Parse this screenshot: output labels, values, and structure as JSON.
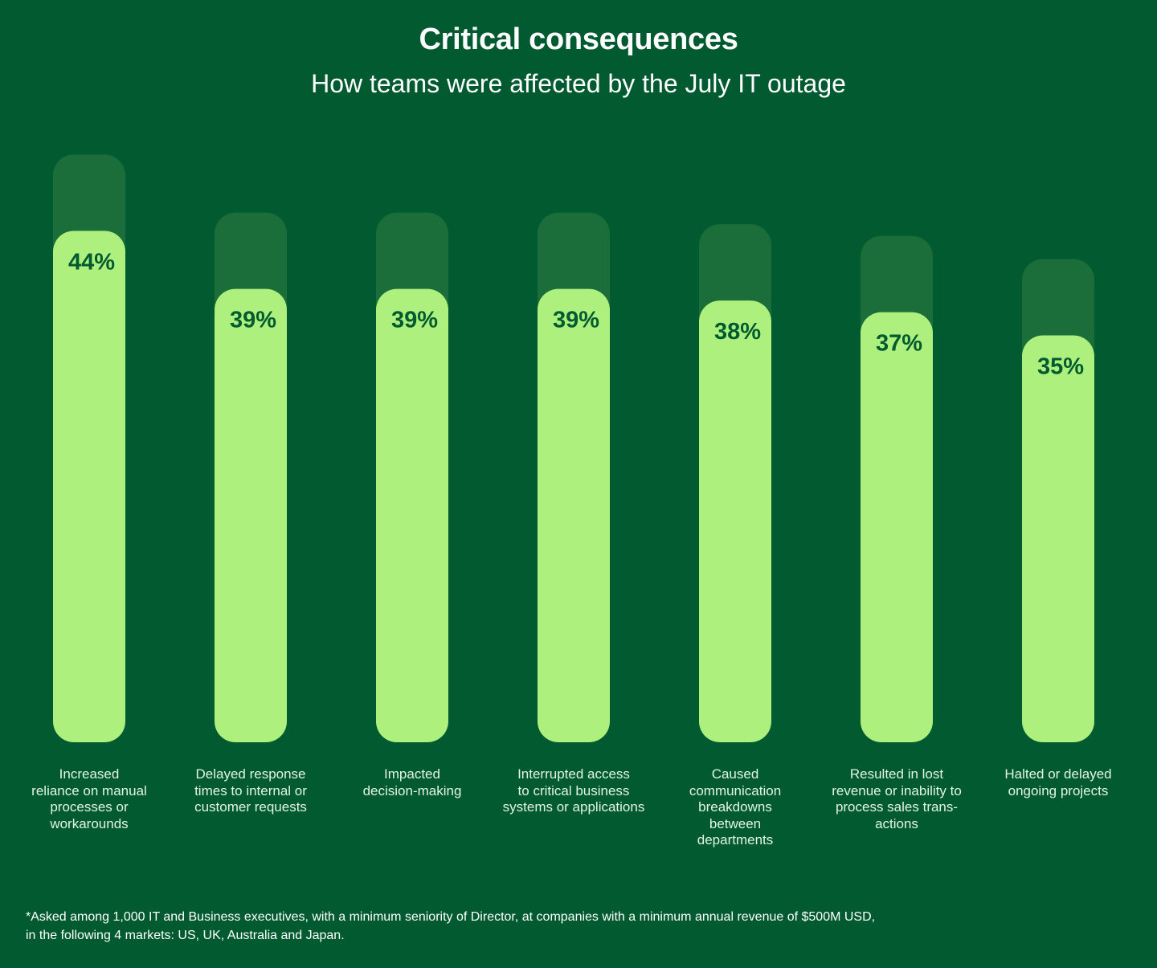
{
  "colors": {
    "background": "#015a30",
    "shadow_bar": "#1b6e3a",
    "value_bar": "#aef07d",
    "value_text": "#015a30"
  },
  "chart_data": {
    "type": "bar",
    "title": "Critical consequences",
    "subtitle": "How teams were affected by the July IT outage",
    "xlabel": "",
    "ylabel": "",
    "ylim": [
      0,
      44
    ],
    "grid": false,
    "categories": [
      "Increased reliance on manual processes or workarounds",
      "Delayed response times to internal or customer requests",
      "Impacted decision-making",
      "Interrupted access to critical business systems or applications",
      "Caused communication breakdowns between departments",
      "Resulted in lost revenue or inability to process sales trans-actions",
      "Halted or delayed ongoing projects"
    ],
    "category_lines": [
      [
        "Increased",
        "reliance on manual",
        "processes or",
        "workarounds"
      ],
      [
        "Delayed response",
        "times to internal or",
        "customer requests"
      ],
      [
        "Impacted",
        "decision-making"
      ],
      [
        "Interrupted access",
        "to critical business",
        "systems or applications"
      ],
      [
        "Caused",
        "communication",
        "breakdowns",
        "between",
        "departments"
      ],
      [
        "Resulted in lost",
        "revenue or inability to",
        "process sales trans-",
        "actions"
      ],
      [
        "Halted or delayed",
        "ongoing projects"
      ]
    ],
    "values": [
      44,
      39,
      39,
      39,
      38,
      37,
      35
    ],
    "value_labels": [
      "44%",
      "39%",
      "39%",
      "39%",
      "38%",
      "37%",
      "35%"
    ],
    "unit": "%"
  },
  "footnote": {
    "line1": "*Asked among 1,000 IT and Business executives, with a minimum seniority of Director, at companies with a minimum annual revenue of $500M USD,",
    "line2": "in the following 4 markets: US, UK, Australia and Japan."
  }
}
